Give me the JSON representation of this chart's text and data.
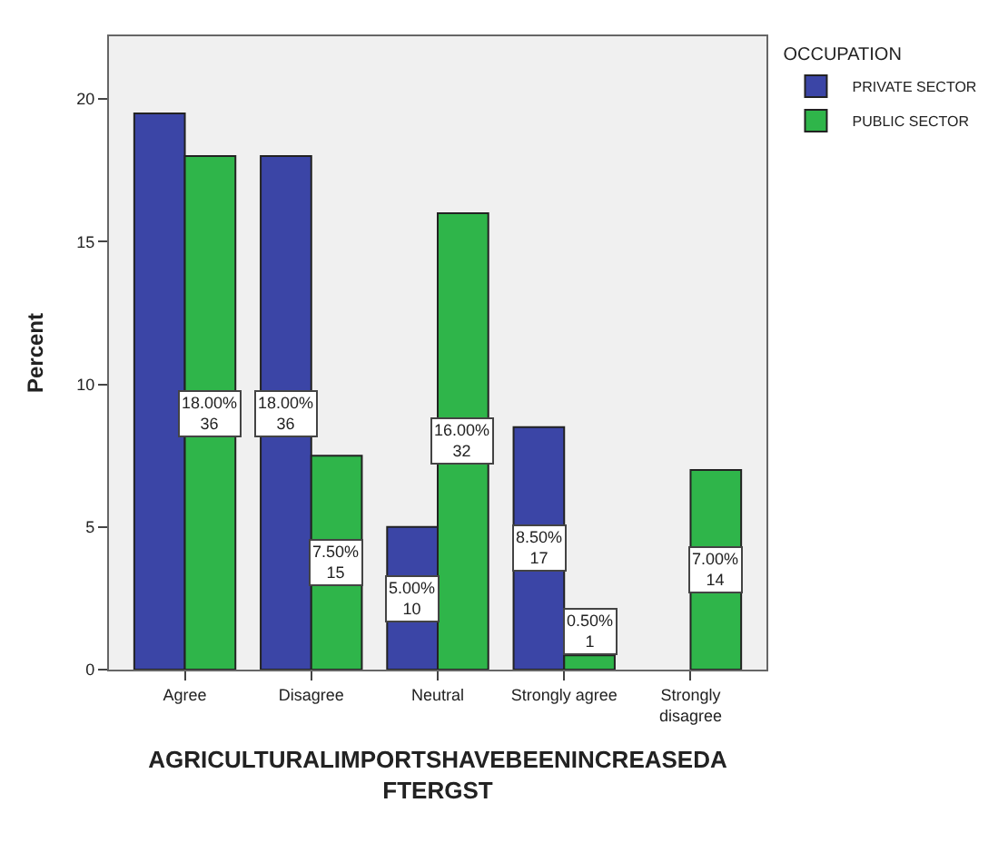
{
  "chart_data": {
    "type": "bar",
    "categories": [
      "Agree",
      "Disagree",
      "Neutral",
      "Strongly agree",
      "Strongly\ndisagree"
    ],
    "series": [
      {
        "name": "PRIVATE SECTOR",
        "color": "#3b45a6",
        "values": [
          19.5,
          18,
          5,
          8.5,
          null
        ],
        "value_labels": [
          null,
          "18.00%\n36",
          "5.00%\n10",
          "8.50%\n17",
          null
        ]
      },
      {
        "name": "PUBLIC SECTOR",
        "color": "#2fb54a",
        "values": [
          18,
          7.5,
          16,
          0.5,
          7
        ],
        "value_labels": [
          "18.00%\n36",
          "7.50%\n15",
          "16.00%\n32",
          "0.50%\n1",
          "7.00%\n14"
        ]
      }
    ],
    "xlabel": "AGRICULTURALIMPORTSHAVEBEENINCREASEDA\nFTERGST",
    "ylabel": "Percent",
    "legend_title": "OCCUPATION",
    "ylim": [
      0,
      22.2
    ],
    "yticks": [
      0,
      5,
      10,
      15,
      20
    ],
    "grid": false,
    "legend": "top right"
  }
}
